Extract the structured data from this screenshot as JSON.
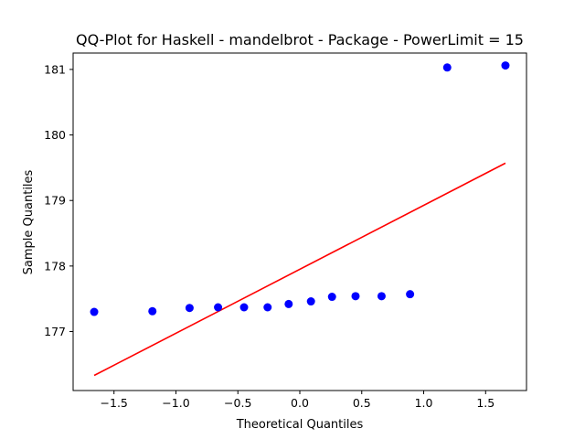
{
  "chart_data": {
    "type": "scatter",
    "title": "QQ-Plot for Haskell - mandelbrot - Package - PowerLimit = 15",
    "xlabel": "Theoretical Quantiles",
    "ylabel": "Sample Quantiles",
    "xlim": [
      -1.83,
      1.83
    ],
    "ylim": [
      176.1,
      181.25
    ],
    "xticks": [
      -1.5,
      -1.0,
      -0.5,
      0.0,
      0.5,
      1.0,
      1.5
    ],
    "xtick_labels": [
      "−1.5",
      "−1.0",
      "−0.5",
      "0.0",
      "0.5",
      "1.0",
      "1.5"
    ],
    "yticks": [
      177,
      178,
      179,
      180,
      181
    ],
    "ytick_labels": [
      "177",
      "178",
      "179",
      "180",
      "181"
    ],
    "grid": false,
    "series": [
      {
        "kind": "points",
        "color": "#0000ff",
        "x": [
          -1.66,
          -1.19,
          -0.89,
          -0.66,
          -0.45,
          -0.26,
          -0.09,
          0.09,
          0.26,
          0.45,
          0.66,
          0.89,
          1.19,
          1.66
        ],
        "y": [
          177.3,
          177.31,
          177.36,
          177.37,
          177.37,
          177.37,
          177.42,
          177.46,
          177.53,
          177.54,
          177.54,
          177.57,
          181.03,
          181.06
        ]
      },
      {
        "kind": "line",
        "color": "#ff0000",
        "x": [
          -1.66,
          1.66
        ],
        "y": [
          176.33,
          179.57
        ]
      }
    ]
  }
}
